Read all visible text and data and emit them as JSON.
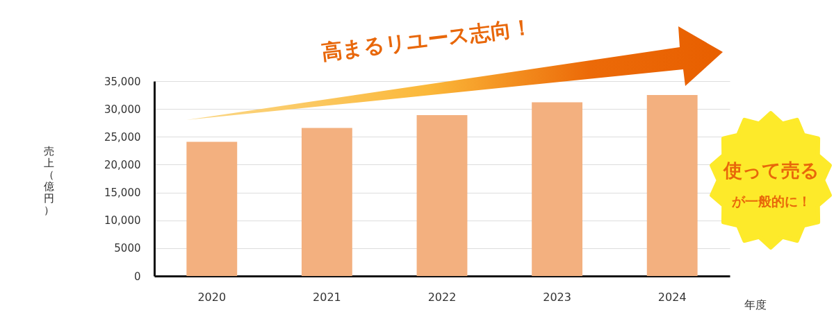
{
  "chart_data": {
    "type": "bar",
    "categories": [
      "2020",
      "2021",
      "2022",
      "2023",
      "2024"
    ],
    "values": [
      24100,
      26600,
      28900,
      31200,
      32500
    ],
    "color": "#f3b07f",
    "xlabel": "年度",
    "ylabel": "売上（億円）",
    "ylim": [
      0,
      35000
    ],
    "yticks": [
      0,
      5000,
      {
        "value": 10000,
        "label": "10,000"
      },
      {
        "value": 15000,
        "label": "15,000"
      },
      {
        "value": 20000,
        "label": "20,000"
      },
      {
        "value": 25000,
        "label": "25,000"
      },
      {
        "value": 30000,
        "label": "30,000"
      },
      {
        "value": 35000,
        "label": "35,000"
      }
    ],
    "grid": "y",
    "annotations": [
      "高まるリユース志向！",
      "使って売る",
      "が一般的に！"
    ]
  }
}
